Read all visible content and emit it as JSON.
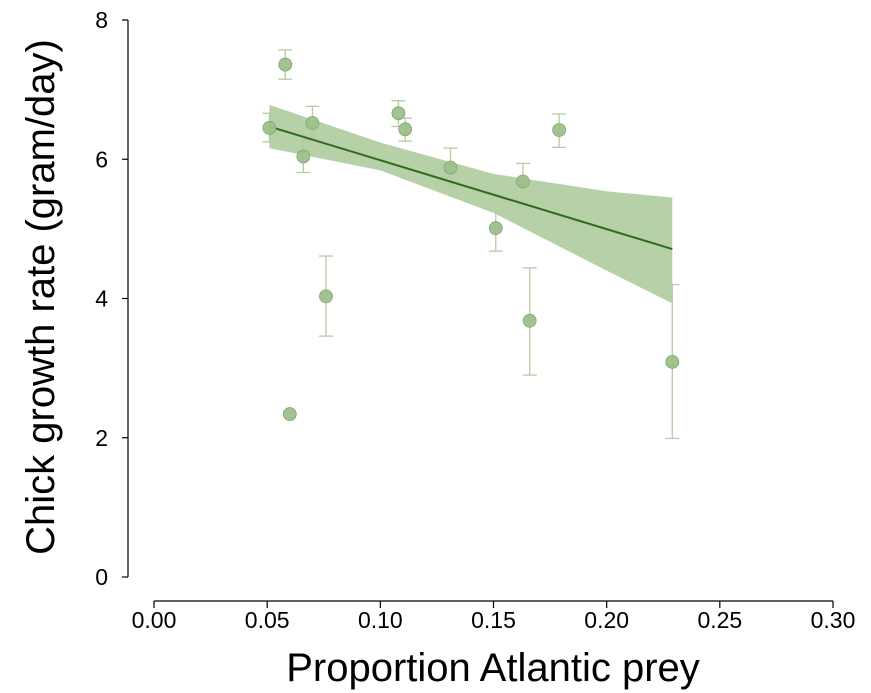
{
  "chart_data": {
    "type": "scatter",
    "title": "",
    "xlabel": "Proportion Atlantic prey",
    "ylabel": "Chick growth rate (gram/day)",
    "xlim": [
      0.0,
      0.3
    ],
    "ylim": [
      0,
      8
    ],
    "x_ticks": [
      0.0,
      0.05,
      0.1,
      0.15,
      0.2,
      0.25,
      0.3
    ],
    "x_tick_labels": [
      "0.00",
      "0.05",
      "0.10",
      "0.15",
      "0.20",
      "0.25",
      "0.30"
    ],
    "y_ticks": [
      0,
      2,
      4,
      6,
      8
    ],
    "y_tick_labels": [
      "0",
      "2",
      "4",
      "6",
      "8"
    ],
    "grid": false,
    "legend": "none",
    "colors": {
      "points": "#9dc08b",
      "point_stroke": "#7fa86e",
      "error_bars": "#b8c9a6",
      "fit_line": "#2e6b1f",
      "confidence_band": "#a9c998"
    },
    "points": [
      {
        "x": 0.051,
        "y": 6.45,
        "err_low": 6.25,
        "err_high": 6.66
      },
      {
        "x": 0.058,
        "y": 7.36,
        "err_low": 7.15,
        "err_high": 7.57
      },
      {
        "x": 0.06,
        "y": 2.34,
        "err_low": null,
        "err_high": null
      },
      {
        "x": 0.066,
        "y": 6.04,
        "err_low": 5.81,
        "err_high": 6.27
      },
      {
        "x": 0.07,
        "y": 6.52,
        "err_low": 6.28,
        "err_high": 6.76
      },
      {
        "x": 0.076,
        "y": 4.03,
        "err_low": 3.46,
        "err_high": 4.61
      },
      {
        "x": 0.108,
        "y": 6.66,
        "err_low": 6.47,
        "err_high": 6.84
      },
      {
        "x": 0.111,
        "y": 6.43,
        "err_low": 6.26,
        "err_high": 6.59
      },
      {
        "x": 0.131,
        "y": 5.88,
        "err_low": 5.6,
        "err_high": 6.16
      },
      {
        "x": 0.151,
        "y": 5.01,
        "err_low": 4.68,
        "err_high": 5.34
      },
      {
        "x": 0.163,
        "y": 5.68,
        "err_low": 5.41,
        "err_high": 5.94
      },
      {
        "x": 0.166,
        "y": 3.68,
        "err_low": 2.9,
        "err_high": 4.44
      },
      {
        "x": 0.179,
        "y": 6.42,
        "err_low": 6.17,
        "err_high": 6.65
      },
      {
        "x": 0.229,
        "y": 3.09,
        "err_low": 1.99,
        "err_high": 4.2
      }
    ],
    "fit_line": {
      "x": [
        0.051,
        0.229
      ],
      "y": [
        6.47,
        4.71
      ]
    },
    "confidence_band": {
      "x": [
        0.051,
        0.1,
        0.15,
        0.2,
        0.229
      ],
      "upper": [
        6.78,
        6.24,
        5.79,
        5.54,
        5.45
      ],
      "lower": [
        6.16,
        5.84,
        5.23,
        4.4,
        3.93
      ]
    }
  }
}
